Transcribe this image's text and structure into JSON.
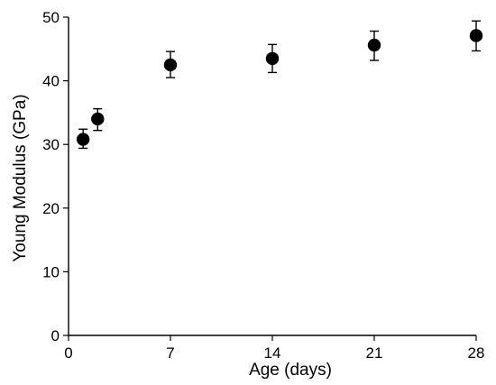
{
  "chart_data": {
    "type": "scatter",
    "title": "",
    "xlabel": "Age (days)",
    "ylabel": "Young Modulus (GPa)",
    "xlim": [
      0,
      28
    ],
    "ylim": [
      0,
      50
    ],
    "xticks": [
      0,
      7,
      14,
      21,
      28
    ],
    "yticks": [
      0,
      10,
      20,
      30,
      40,
      50
    ],
    "grid": false,
    "legend": "none",
    "marker_color": "#000000",
    "series": [
      {
        "x": [
          1,
          2,
          7,
          14,
          21,
          28
        ],
        "y": [
          30.8,
          34.0,
          42.5,
          43.5,
          45.6,
          47.1
        ],
        "err_low": [
          1.4,
          1.8,
          2.0,
          2.2,
          2.4,
          2.4
        ],
        "err_high": [
          1.6,
          1.6,
          2.1,
          2.2,
          2.2,
          2.3
        ]
      }
    ]
  }
}
